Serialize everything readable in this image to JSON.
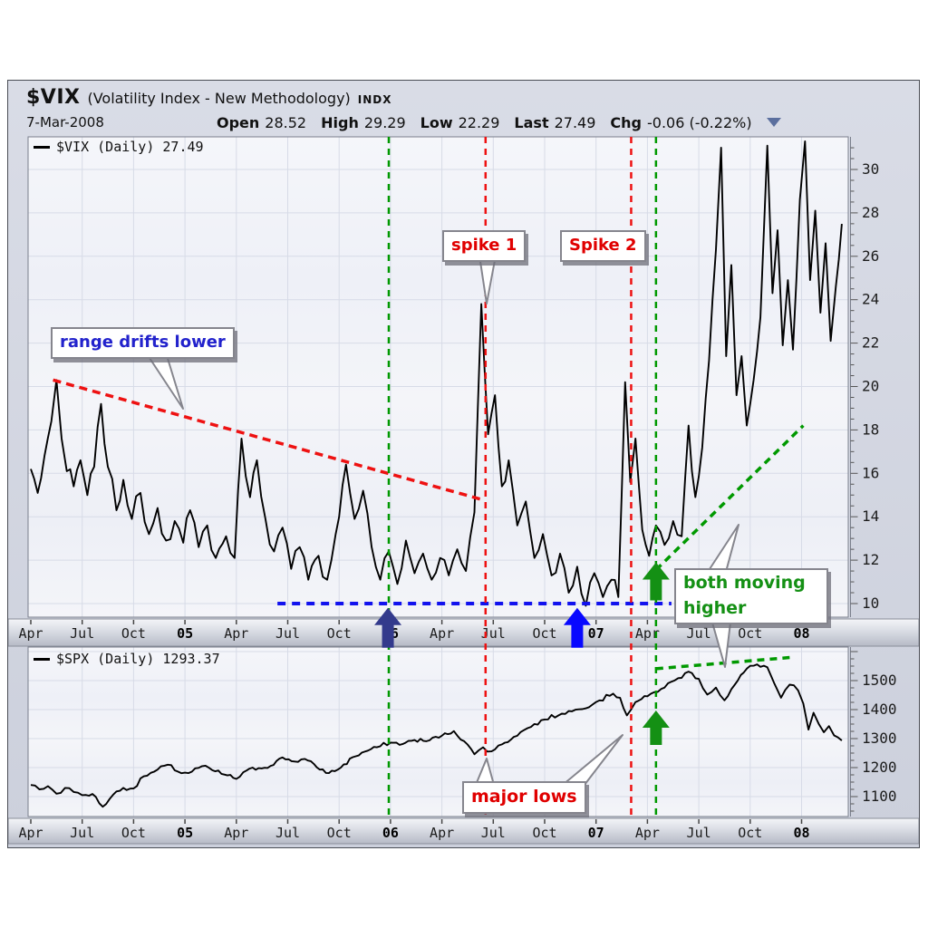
{
  "header": {
    "symbol": "$VIX",
    "description": "(Volatility Index - New Methodology)",
    "exchange": "INDX",
    "date": "7-Mar-2008",
    "quote": [
      {
        "label": "Open",
        "value": "28.52"
      },
      {
        "label": "High",
        "value": "29.29"
      },
      {
        "label": "Low",
        "value": "22.29"
      },
      {
        "label": "Last",
        "value": "27.49"
      },
      {
        "label": "Chg",
        "value": "-0.06 (-0.22%)"
      }
    ]
  },
  "colors": {
    "series": "#000000",
    "red_dash": "#ee1111",
    "green_dash": "#009900",
    "blue_dash": "#1212ee",
    "navy_arrow": "#333a8c",
    "blue_arrow": "#0808ff",
    "green_arrow": "#149014",
    "grid": "#d7dbe7",
    "plot_bg": "#f3f4f8"
  },
  "top_chart": {
    "legend_label": "$VIX (Daily) 27.49"
  },
  "bottom_chart": {
    "legend_label": "$SPX (Daily) 1293.37"
  },
  "annotations": {
    "range_lower": {
      "text": "range drifts lower"
    },
    "spike1": {
      "text": "spike 1"
    },
    "spike2": {
      "text": "Spike 2"
    },
    "both_higher": {
      "text": "both moving higher"
    },
    "major_lows": {
      "text": "major lows"
    }
  },
  "x_axis": {
    "ticks": [
      {
        "m": 0,
        "label": "Apr",
        "bold": false
      },
      {
        "m": 3,
        "label": "Jul",
        "bold": false
      },
      {
        "m": 6,
        "label": "Oct",
        "bold": false
      },
      {
        "m": 9,
        "label": "05",
        "bold": true
      },
      {
        "m": 12,
        "label": "Apr",
        "bold": false
      },
      {
        "m": 15,
        "label": "Jul",
        "bold": false
      },
      {
        "m": 18,
        "label": "Oct",
        "bold": false
      },
      {
        "m": 21,
        "label": "06",
        "bold": true
      },
      {
        "m": 24,
        "label": "Apr",
        "bold": false
      },
      {
        "m": 27,
        "label": "Jul",
        "bold": false
      },
      {
        "m": 30,
        "label": "Oct",
        "bold": false
      },
      {
        "m": 33,
        "label": "07",
        "bold": true
      },
      {
        "m": 36,
        "label": "Apr",
        "bold": false
      },
      {
        "m": 39,
        "label": "Jul",
        "bold": false
      },
      {
        "m": 42,
        "label": "Oct",
        "bold": false
      },
      {
        "m": 45,
        "label": "08",
        "bold": true
      }
    ]
  },
  "chart_data": [
    {
      "type": "line",
      "title": "$VIX (Daily)",
      "last": 27.49,
      "x_unit": "months since Apr-2004 (quarterly ticks Apr Jul Oct + year)",
      "ylim": [
        9.4,
        31.5
      ],
      "yticks": [
        10,
        12,
        14,
        16,
        18,
        20,
        22,
        24,
        26,
        28,
        30
      ],
      "grid": true,
      "points": [
        [
          0,
          16.2
        ],
        [
          0.4,
          15.1
        ],
        [
          0.8,
          16.8
        ],
        [
          1.2,
          18.4
        ],
        [
          1.5,
          20.3
        ],
        [
          1.8,
          17.6
        ],
        [
          2.1,
          16.1
        ],
        [
          2.5,
          15.4
        ],
        [
          2.9,
          16.6
        ],
        [
          3.3,
          15.0
        ],
        [
          3.7,
          16.3
        ],
        [
          4.1,
          19.2
        ],
        [
          4.5,
          16.3
        ],
        [
          5,
          14.3
        ],
        [
          5.4,
          15.7
        ],
        [
          5.9,
          13.9
        ],
        [
          6.4,
          15.1
        ],
        [
          6.9,
          13.2
        ],
        [
          7.4,
          14.4
        ],
        [
          7.9,
          12.9
        ],
        [
          8.4,
          13.8
        ],
        [
          8.9,
          12.8
        ],
        [
          9.3,
          14.3
        ],
        [
          9.8,
          12.6
        ],
        [
          10.3,
          13.6
        ],
        [
          10.8,
          12.1
        ],
        [
          11.4,
          13.1
        ],
        [
          11.9,
          12.1
        ],
        [
          12.3,
          17.6
        ],
        [
          12.8,
          14.9
        ],
        [
          13.2,
          16.6
        ],
        [
          13.7,
          13.9
        ],
        [
          14.2,
          12.4
        ],
        [
          14.7,
          13.5
        ],
        [
          15.2,
          11.6
        ],
        [
          15.7,
          12.6
        ],
        [
          16.2,
          11.1
        ],
        [
          16.8,
          12.2
        ],
        [
          17.3,
          11.1
        ],
        [
          17.8,
          13.2
        ],
        [
          18.4,
          16.4
        ],
        [
          18.9,
          13.9
        ],
        [
          19.4,
          15.2
        ],
        [
          19.9,
          12.6
        ],
        [
          20.4,
          11.1
        ],
        [
          20.9,
          12.4
        ],
        [
          21.4,
          10.9
        ],
        [
          21.9,
          12.9
        ],
        [
          22.4,
          11.4
        ],
        [
          22.9,
          12.3
        ],
        [
          23.4,
          11.1
        ],
        [
          23.9,
          12.1
        ],
        [
          24.4,
          11.3
        ],
        [
          24.9,
          12.5
        ],
        [
          25.4,
          11.5
        ],
        [
          25.9,
          14.2
        ],
        [
          26.3,
          23.8
        ],
        [
          26.7,
          17.8
        ],
        [
          27.1,
          19.6
        ],
        [
          27.5,
          15.4
        ],
        [
          27.9,
          16.6
        ],
        [
          28.4,
          13.6
        ],
        [
          28.9,
          14.7
        ],
        [
          29.4,
          12.1
        ],
        [
          29.9,
          13.2
        ],
        [
          30.4,
          11.3
        ],
        [
          30.9,
          12.3
        ],
        [
          31.4,
          10.5
        ],
        [
          31.9,
          11.7
        ],
        [
          32.4,
          9.9
        ],
        [
          32.9,
          11.4
        ],
        [
          33.4,
          10.3
        ],
        [
          33.9,
          11.1
        ],
        [
          34.3,
          10.3
        ],
        [
          34.7,
          20.2
        ],
        [
          35,
          15.6
        ],
        [
          35.3,
          17.6
        ],
        [
          35.7,
          13.4
        ],
        [
          36.1,
          12.2
        ],
        [
          36.5,
          13.6
        ],
        [
          37,
          12.7
        ],
        [
          37.5,
          13.8
        ],
        [
          38,
          13.1
        ],
        [
          38.4,
          18.2
        ],
        [
          38.8,
          14.9
        ],
        [
          39.2,
          17.2
        ],
        [
          39.6,
          21.2
        ],
        [
          40,
          26.3
        ],
        [
          40.3,
          31
        ],
        [
          40.6,
          21.4
        ],
        [
          40.9,
          25.6
        ],
        [
          41.2,
          19.6
        ],
        [
          41.5,
          21.4
        ],
        [
          41.8,
          18.2
        ],
        [
          42.2,
          20.3
        ],
        [
          42.6,
          23.2
        ],
        [
          43,
          31.1
        ],
        [
          43.3,
          24.3
        ],
        [
          43.6,
          27.2
        ],
        [
          43.9,
          21.9
        ],
        [
          44.2,
          24.9
        ],
        [
          44.5,
          21.7
        ],
        [
          44.9,
          28.6
        ],
        [
          45.2,
          31.3
        ],
        [
          45.5,
          24.9
        ],
        [
          45.8,
          28.1
        ],
        [
          46.1,
          23.4
        ],
        [
          46.4,
          26.6
        ],
        [
          46.7,
          22.1
        ],
        [
          47,
          24.6
        ],
        [
          47.35,
          27.49
        ]
      ],
      "overlays": {
        "resistance_line": {
          "label": "range drifts lower",
          "color": "red",
          "from": [
            1.3,
            20.3
          ],
          "to": [
            26.3,
            14.8
          ]
        },
        "support_line": {
          "color": "blue",
          "value": 10.0,
          "from_month": 14.4,
          "to_month": 37.4
        },
        "rising_line": {
          "label": "both moving higher",
          "color": "green",
          "from": [
            36.5,
            11.55
          ],
          "to": [
            45.1,
            18.2
          ]
        },
        "vertical_lines": [
          {
            "month": 20.9,
            "color": "green"
          },
          {
            "month": 26.55,
            "color": "red",
            "label": "spike 1"
          },
          {
            "month": 35.05,
            "color": "red",
            "label": "Spike 2"
          },
          {
            "month": 36.5,
            "color": "green"
          }
        ],
        "arrows": [
          {
            "month": 20.85,
            "color": "navy",
            "tip_value": 9.8
          },
          {
            "month": 31.9,
            "color": "blue",
            "tip_value": 9.8
          },
          {
            "month": 36.5,
            "color": "green",
            "tip_value": 11.9
          }
        ]
      }
    },
    {
      "type": "line",
      "title": "$SPX (Daily)",
      "last": 1293.37,
      "x_unit": "months since Apr-2004 (quarterly ticks Apr Jul Oct + year)",
      "ylim": [
        1031,
        1615
      ],
      "yticks": [
        1100,
        1200,
        1300,
        1400,
        1500
      ],
      "grid": true,
      "points": [
        [
          0,
          1140
        ],
        [
          0.5,
          1125
        ],
        [
          1,
          1136
        ],
        [
          1.5,
          1110
        ],
        [
          2,
          1130
        ],
        [
          2.5,
          1116
        ],
        [
          3,
          1105
        ],
        [
          3.6,
          1109
        ],
        [
          4.2,
          1065
        ],
        [
          4.8,
          1106
        ],
        [
          5.4,
          1130
        ],
        [
          6,
          1128
        ],
        [
          6.6,
          1170
        ],
        [
          7.2,
          1186
        ],
        [
          8,
          1210
        ],
        [
          8.6,
          1186
        ],
        [
          9.2,
          1181
        ],
        [
          10,
          1205
        ],
        [
          10.6,
          1191
        ],
        [
          11.3,
          1176
        ],
        [
          12,
          1161
        ],
        [
          12.6,
          1190
        ],
        [
          13.3,
          1198
        ],
        [
          14,
          1206
        ],
        [
          14.7,
          1235
        ],
        [
          15.4,
          1221
        ],
        [
          16,
          1230
        ],
        [
          16.7,
          1201
        ],
        [
          17.4,
          1181
        ],
        [
          18.1,
          1200
        ],
        [
          18.8,
          1236
        ],
        [
          19.5,
          1255
        ],
        [
          20.2,
          1270
        ],
        [
          21,
          1286
        ],
        [
          21.7,
          1281
        ],
        [
          22.4,
          1295
        ],
        [
          23.1,
          1291
        ],
        [
          24,
          1310
        ],
        [
          24.7,
          1326
        ],
        [
          25.3,
          1291
        ],
        [
          25.9,
          1246
        ],
        [
          26.4,
          1270
        ],
        [
          26.9,
          1256
        ],
        [
          27.5,
          1280
        ],
        [
          28.2,
          1306
        ],
        [
          29,
          1336
        ],
        [
          30,
          1366
        ],
        [
          31,
          1386
        ],
        [
          32,
          1401
        ],
        [
          33,
          1426
        ],
        [
          34,
          1455
        ],
        [
          34.4,
          1441
        ],
        [
          34.8,
          1380
        ],
        [
          35.3,
          1426
        ],
        [
          36,
          1446
        ],
        [
          36.8,
          1471
        ],
        [
          37.6,
          1501
        ],
        [
          38.4,
          1531
        ],
        [
          39,
          1506
        ],
        [
          39.5,
          1452
        ],
        [
          40,
          1476
        ],
        [
          40.5,
          1432
        ],
        [
          41.1,
          1486
        ],
        [
          41.8,
          1541
        ],
        [
          42.4,
          1556
        ],
        [
          43,
          1546
        ],
        [
          43.4,
          1491
        ],
        [
          43.8,
          1441
        ],
        [
          44.3,
          1486
        ],
        [
          44.8,
          1466
        ],
        [
          45.1,
          1421
        ],
        [
          45.4,
          1331
        ],
        [
          45.7,
          1389
        ],
        [
          46,
          1351
        ],
        [
          46.3,
          1322
        ],
        [
          46.6,
          1343
        ],
        [
          46.9,
          1311
        ],
        [
          47.35,
          1293.37
        ]
      ],
      "overlays": {
        "rising_line": {
          "color": "green",
          "from": [
            36.5,
            1541
          ],
          "to": [
            44.6,
            1581
          ]
        },
        "arrows": [
          {
            "month": 36.5,
            "color": "green",
            "tip_value": 1397
          }
        ],
        "labels": [
          "major lows"
        ]
      }
    }
  ]
}
